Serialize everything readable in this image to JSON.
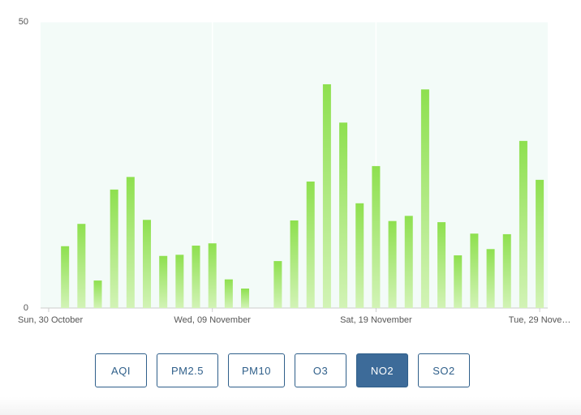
{
  "chart_data": {
    "type": "bar",
    "categories": [
      "Sun, 30 October",
      null,
      null,
      null,
      null,
      null,
      null,
      null,
      null,
      null,
      "Wed, 09 November",
      null,
      null,
      null,
      null,
      null,
      null,
      null,
      null,
      null,
      "Sat, 19 November",
      null,
      null,
      null,
      null,
      null,
      null,
      null,
      null,
      null,
      "Tue, 29 Nove…"
    ],
    "values": [
      null,
      10.8,
      14.7,
      4.8,
      20.7,
      22.9,
      15.4,
      9.1,
      9.3,
      10.9,
      11.3,
      5.0,
      3.4,
      null,
      8.2,
      15.3,
      22.1,
      39.1,
      32.4,
      18.3,
      24.8,
      15.2,
      16.1,
      38.2,
      15.0,
      9.2,
      13.0,
      10.3,
      12.9,
      29.2,
      22.4
    ],
    "color": "#8ee04f",
    "ylim": [
      0,
      50
    ],
    "yticks": [
      0,
      50
    ],
    "grid": true
  },
  "buttons": {
    "items": [
      "AQI",
      "PM2.5",
      "PM10",
      "O3",
      "NO2",
      "SO2"
    ],
    "active_index": 4
  }
}
